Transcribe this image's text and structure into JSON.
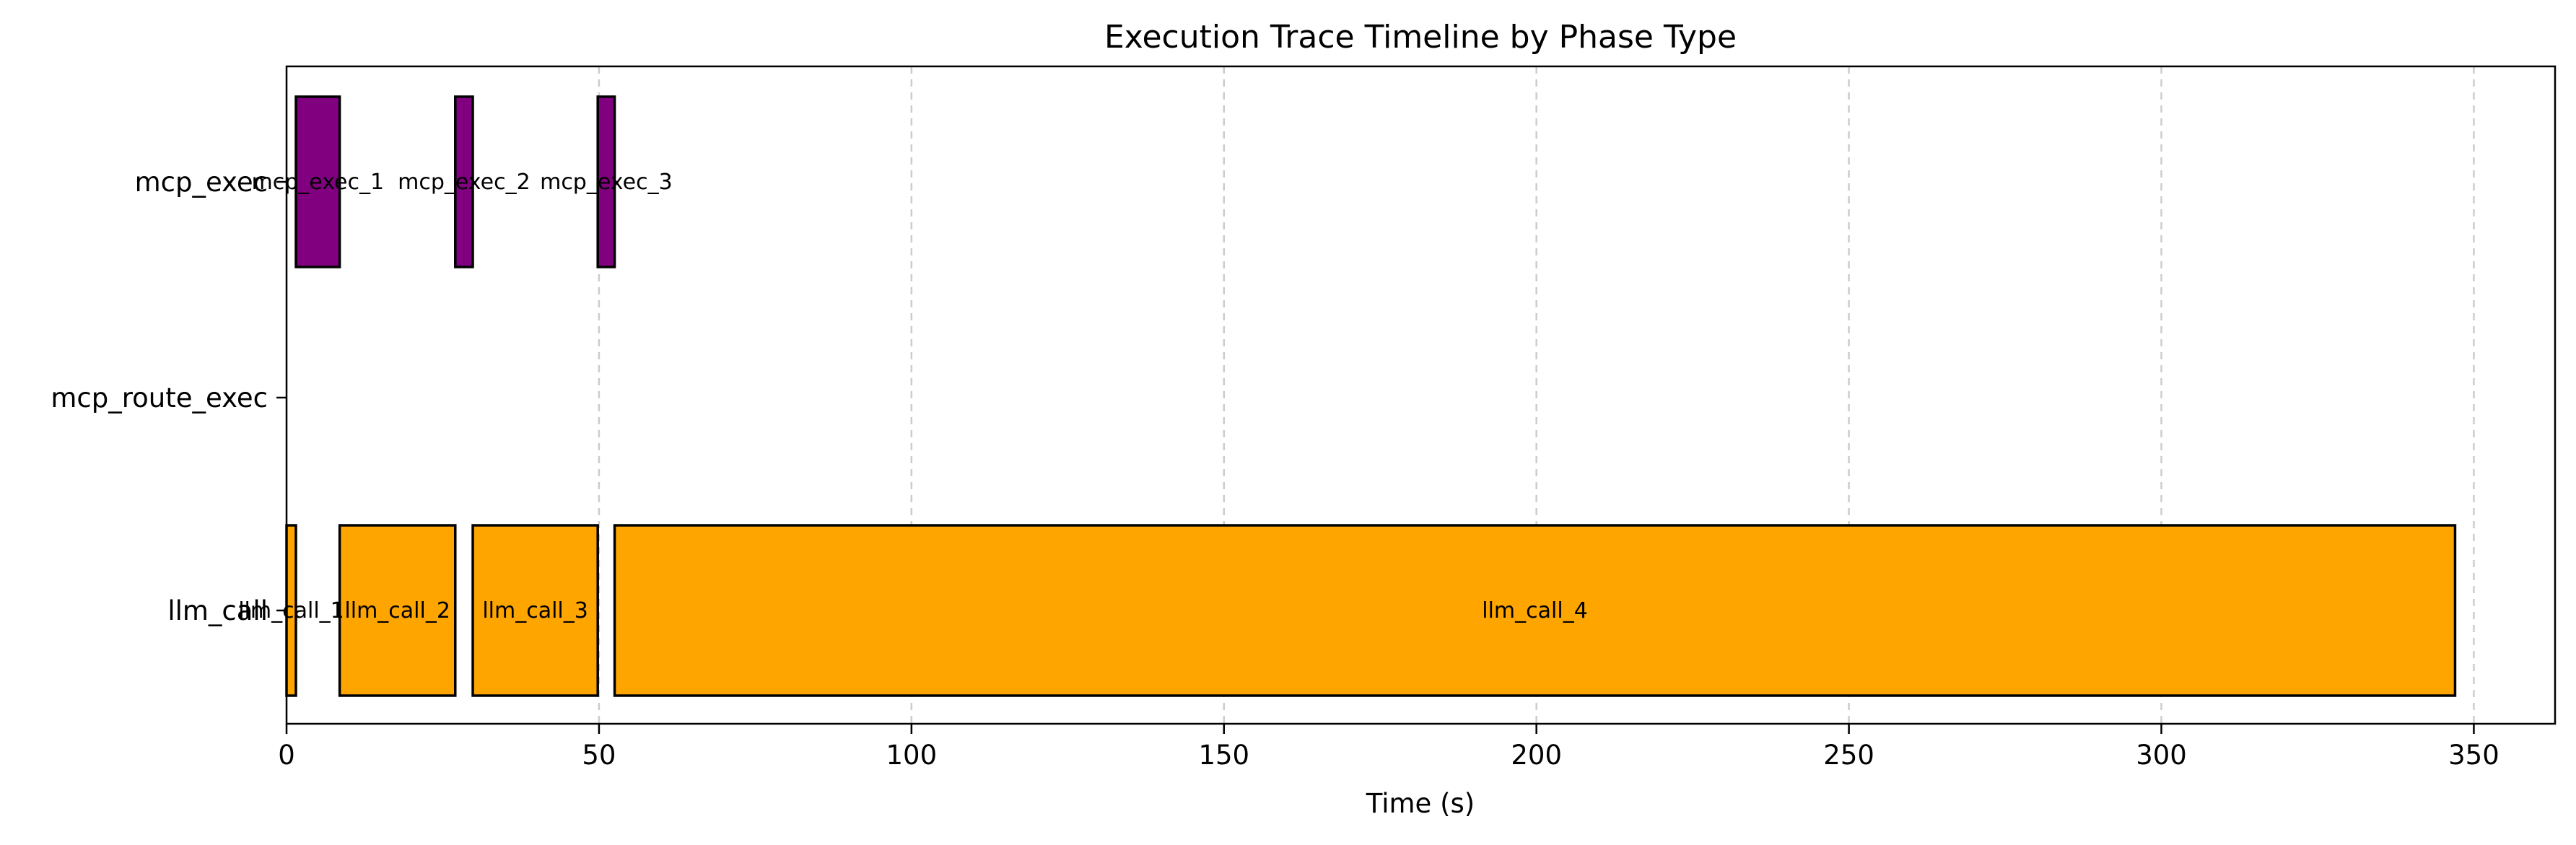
{
  "chart_data": {
    "type": "bar",
    "orientation": "horizontal-timeline",
    "title": "Execution Trace Timeline by Phase Type",
    "xlabel": "Time (s)",
    "ylabel": "",
    "xlim": [
      0,
      363
    ],
    "xticks": [
      0,
      50,
      100,
      150,
      200,
      250,
      300,
      350
    ],
    "xtick_labels": [
      "0",
      "50",
      "100",
      "150",
      "200",
      "250",
      "300",
      "350"
    ],
    "categories": [
      "mcp_exec",
      "mcp_route_exec",
      "llm_call"
    ],
    "grid": {
      "x": true,
      "y": false,
      "style": "dashed"
    },
    "colors": {
      "mcp_exec": "#800080",
      "llm_call": "#FFA500",
      "edge": "#000000",
      "grid": "#cccccc"
    },
    "segments": [
      {
        "category": "mcp_exec",
        "label": "mcp_exec_1",
        "start": 1.5,
        "end": 8.5
      },
      {
        "category": "mcp_exec",
        "label": "mcp_exec_2",
        "start": 27.0,
        "end": 29.8
      },
      {
        "category": "mcp_exec",
        "label": "mcp_exec_3",
        "start": 49.8,
        "end": 52.5
      },
      {
        "category": "llm_call",
        "label": "llm_call_1",
        "start": 0.0,
        "end": 1.5
      },
      {
        "category": "llm_call",
        "label": "llm_call_2",
        "start": 8.5,
        "end": 27.0
      },
      {
        "category": "llm_call",
        "label": "llm_call_3",
        "start": 29.8,
        "end": 49.8
      },
      {
        "category": "llm_call",
        "label": "llm_call_4",
        "start": 52.5,
        "end": 347.0
      }
    ]
  }
}
